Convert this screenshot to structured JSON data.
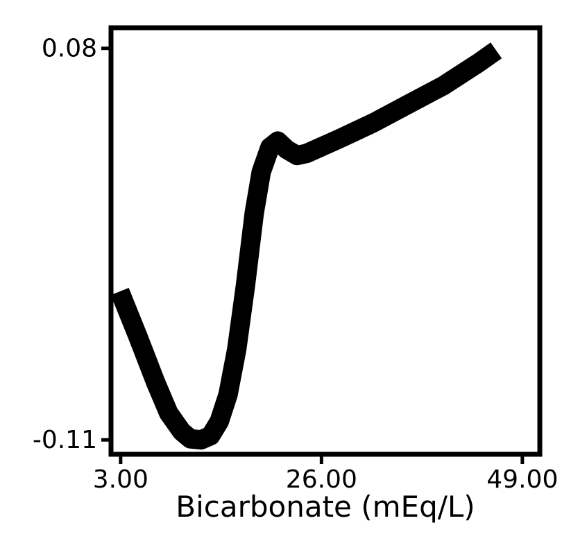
{
  "chart_data": {
    "type": "line",
    "title": "",
    "xlabel": "Bicarbonate (mEq/L)",
    "ylabel": "",
    "xlim": [
      1.9,
      51.0
    ],
    "ylim": [
      -0.117,
      0.09
    ],
    "x_ticks": [
      {
        "value": 3.0,
        "label": "3.00"
      },
      {
        "value": 26.0,
        "label": "26.00"
      },
      {
        "value": 49.0,
        "label": "49.00"
      }
    ],
    "y_ticks": [
      {
        "value": 0.08,
        "label": "0.08"
      },
      {
        "value": -0.11,
        "label": "-0.11"
      }
    ],
    "grid": false,
    "legend": "none",
    "series": [
      {
        "color": "#000000",
        "points": [
          [
            2.9,
            -0.038
          ],
          [
            5.0,
            -0.06
          ],
          [
            7.0,
            -0.082
          ],
          [
            8.5,
            -0.097
          ],
          [
            10.0,
            -0.106
          ],
          [
            11.0,
            -0.1095
          ],
          [
            12.2,
            -0.11
          ],
          [
            13.3,
            -0.108
          ],
          [
            14.3,
            -0.101
          ],
          [
            15.3,
            -0.088
          ],
          [
            16.3,
            -0.066
          ],
          [
            17.3,
            -0.035
          ],
          [
            18.3,
            0.0
          ],
          [
            19.1,
            0.02
          ],
          [
            20.1,
            0.032
          ],
          [
            21.0,
            0.035
          ],
          [
            22.0,
            0.031
          ],
          [
            23.2,
            0.028
          ],
          [
            24.3,
            0.029
          ],
          [
            28.0,
            0.036
          ],
          [
            32.0,
            0.044
          ],
          [
            36.0,
            0.053
          ],
          [
            40.0,
            0.062
          ],
          [
            44.0,
            0.073
          ],
          [
            46.0,
            0.079
          ]
        ]
      }
    ]
  }
}
